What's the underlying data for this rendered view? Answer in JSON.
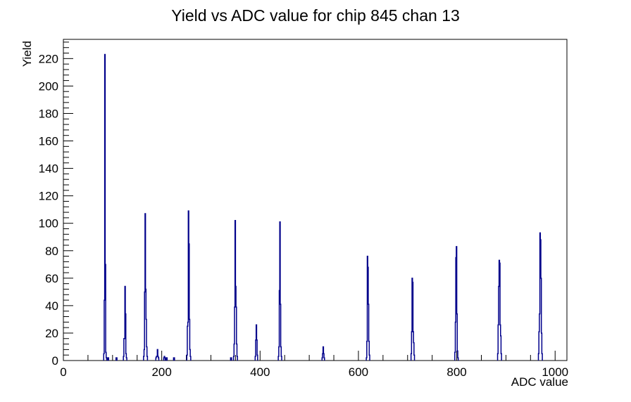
{
  "title": "Yield vs ADC value for chip 845 chan 13",
  "background_color": "#ffffff",
  "chart_data": {
    "type": "bar",
    "subtype": "histogram-step-outline",
    "title": "Yield vs ADC value for chip 845 chan 13",
    "xlabel": "ADC value",
    "ylabel": "Yield",
    "xlim": [
      0,
      1024
    ],
    "ylim": [
      0,
      234
    ],
    "x_major_ticks": [
      0,
      200,
      400,
      600,
      800,
      1000
    ],
    "x_minor_step": 50,
    "y_major_ticks": [
      0,
      20,
      40,
      60,
      80,
      100,
      120,
      140,
      160,
      180,
      200,
      220
    ],
    "y_minor_step": 4,
    "grid": "off",
    "legend": "none",
    "line_color": "#00008b",
    "axis_color": "#000000",
    "peaks": [
      {
        "adc": 84,
        "yield": 223
      },
      {
        "adc": 125,
        "yield": 54
      },
      {
        "adc": 166,
        "yield": 107
      },
      {
        "adc": 254,
        "yield": 109
      },
      {
        "adc": 349,
        "yield": 102
      },
      {
        "adc": 392,
        "yield": 26
      },
      {
        "adc": 440,
        "yield": 101
      },
      {
        "adc": 528,
        "yield": 10
      },
      {
        "adc": 618,
        "yield": 76
      },
      {
        "adc": 709,
        "yield": 60
      },
      {
        "adc": 799,
        "yield": 83
      },
      {
        "adc": 886,
        "yield": 73
      },
      {
        "adc": 969,
        "yield": 93
      }
    ],
    "bins": [
      [
        82,
        5
      ],
      [
        83,
        44
      ],
      [
        84,
        223
      ],
      [
        85,
        70
      ],
      [
        86,
        6
      ],
      [
        87,
        2
      ],
      [
        90,
        2
      ],
      [
        91,
        2
      ],
      [
        107,
        2
      ],
      [
        108,
        2
      ],
      [
        122,
        3
      ],
      [
        123,
        16
      ],
      [
        124,
        16
      ],
      [
        125,
        54
      ],
      [
        126,
        34
      ],
      [
        127,
        5
      ],
      [
        128,
        2
      ],
      [
        163,
        3
      ],
      [
        164,
        8
      ],
      [
        165,
        50
      ],
      [
        166,
        107
      ],
      [
        167,
        52
      ],
      [
        168,
        30
      ],
      [
        169,
        10
      ],
      [
        170,
        3
      ],
      [
        188,
        2
      ],
      [
        189,
        3
      ],
      [
        190,
        3
      ],
      [
        191,
        8
      ],
      [
        192,
        3
      ],
      [
        193,
        2
      ],
      [
        204,
        2
      ],
      [
        205,
        3
      ],
      [
        206,
        2
      ],
      [
        209,
        2
      ],
      [
        210,
        2
      ],
      [
        224,
        2
      ],
      [
        225,
        2
      ],
      [
        251,
        4
      ],
      [
        252,
        25
      ],
      [
        253,
        28
      ],
      [
        254,
        109
      ],
      [
        255,
        85
      ],
      [
        256,
        30
      ],
      [
        257,
        8
      ],
      [
        258,
        3
      ],
      [
        340,
        2
      ],
      [
        341,
        2
      ],
      [
        346,
        3
      ],
      [
        347,
        12
      ],
      [
        348,
        39
      ],
      [
        349,
        102
      ],
      [
        350,
        54
      ],
      [
        351,
        39
      ],
      [
        352,
        12
      ],
      [
        353,
        3
      ],
      [
        390,
        3
      ],
      [
        391,
        15
      ],
      [
        392,
        26
      ],
      [
        393,
        15
      ],
      [
        394,
        4
      ],
      [
        437,
        3
      ],
      [
        438,
        10
      ],
      [
        439,
        51
      ],
      [
        440,
        101
      ],
      [
        441,
        41
      ],
      [
        442,
        10
      ],
      [
        443,
        3
      ],
      [
        526,
        2
      ],
      [
        527,
        5
      ],
      [
        528,
        10
      ],
      [
        529,
        5
      ],
      [
        530,
        2
      ],
      [
        616,
        2
      ],
      [
        617,
        14
      ],
      [
        618,
        76
      ],
      [
        619,
        68
      ],
      [
        620,
        41
      ],
      [
        621,
        14
      ],
      [
        622,
        4
      ],
      [
        707,
        5
      ],
      [
        708,
        21
      ],
      [
        709,
        60
      ],
      [
        710,
        57
      ],
      [
        711,
        21
      ],
      [
        712,
        13
      ],
      [
        713,
        4
      ],
      [
        796,
        6
      ],
      [
        797,
        28
      ],
      [
        798,
        75
      ],
      [
        799,
        83
      ],
      [
        800,
        34
      ],
      [
        801,
        7
      ],
      [
        802,
        2
      ],
      [
        883,
        5
      ],
      [
        884,
        26
      ],
      [
        885,
        54
      ],
      [
        886,
        73
      ],
      [
        887,
        71
      ],
      [
        888,
        26
      ],
      [
        889,
        18
      ],
      [
        890,
        5
      ],
      [
        966,
        5
      ],
      [
        967,
        21
      ],
      [
        968,
        34
      ],
      [
        969,
        93
      ],
      [
        970,
        88
      ],
      [
        971,
        60
      ],
      [
        972,
        20
      ],
      [
        973,
        5
      ]
    ]
  }
}
